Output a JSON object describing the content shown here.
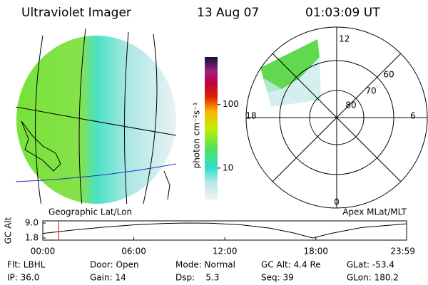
{
  "header": {
    "title": "Ultraviolet Imager",
    "date": "13 Aug 07",
    "time": "01:03:09 UT"
  },
  "colorbar": {
    "label": "photon cm⁻²s⁻¹",
    "log": true,
    "ylim": [
      3.2,
      560
    ],
    "yticks": [
      10,
      100
    ]
  },
  "left_map": {
    "label": "Geographic Lat/Lon"
  },
  "polar": {
    "label": "Apex MLat/MLT",
    "mlt_labels": [
      "12",
      "6",
      "0",
      "18"
    ],
    "lat_labels": [
      "60",
      "70",
      "80"
    ]
  },
  "chart_data": {
    "type": "line",
    "ylabel": "GC Alt",
    "x": [
      0,
      2,
      4,
      6,
      8,
      9.5,
      11,
      13,
      15,
      16.5,
      17.8,
      19,
      21,
      23.983
    ],
    "values": [
      4.0,
      5.6,
      7.0,
      8.1,
      8.8,
      9.0,
      8.9,
      8.2,
      6.5,
      4.3,
      1.8,
      4.0,
      6.8,
      8.6
    ],
    "color": "#000000",
    "marker_x": 1.0525,
    "marker_color": "#e00000",
    "xlim": [
      0,
      23.983
    ],
    "ylim": [
      1.8,
      9.0
    ],
    "xticks": [
      {
        "value": 0,
        "label": "00:00"
      },
      {
        "value": 6,
        "label": "06:00"
      },
      {
        "value": 12,
        "label": "12:00"
      },
      {
        "value": 18,
        "label": "18:00"
      },
      {
        "value": 23.983,
        "label": "23:59"
      }
    ],
    "yticks": [
      1.8,
      {
        "value": 9,
        "label": "9.0"
      }
    ]
  },
  "footer": [
    [
      "Flt: LBHL",
      "Door: Open",
      "Mode: Normal",
      "GC Alt: 4.4 Re",
      "GLat: -53.4"
    ],
    [
      "IP: 36.0",
      "Gain: 14",
      "Dsp:    5.3",
      "Seq: 39",
      "GLon: 180.2"
    ]
  ]
}
